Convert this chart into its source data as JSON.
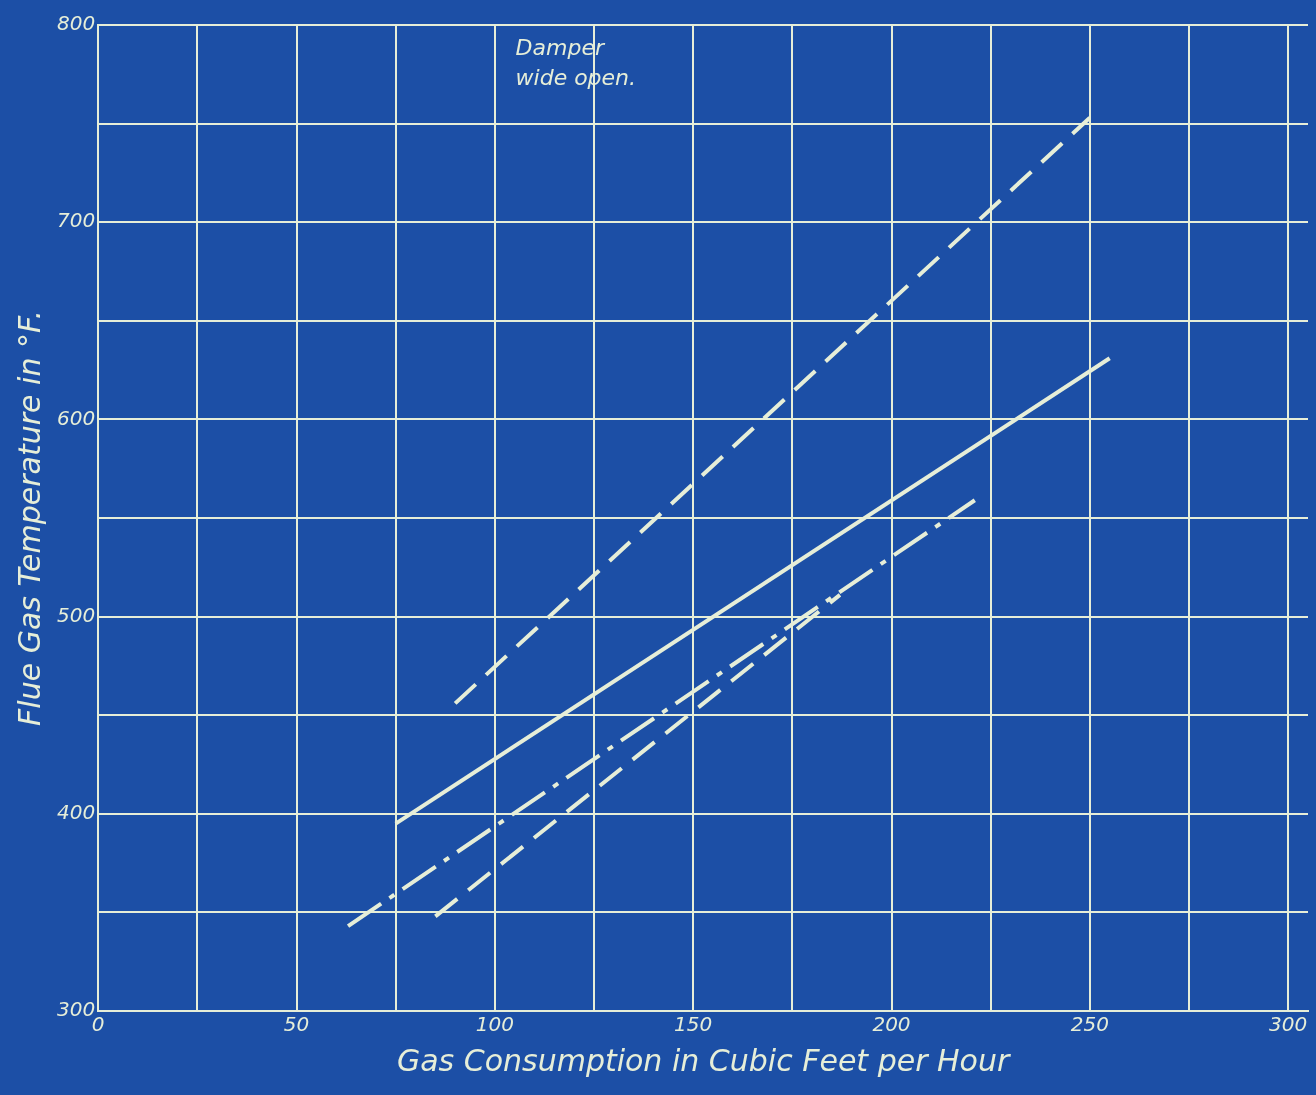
{
  "chart_data": {
    "type": "line",
    "xlabel": "Gas Consumption in Cubic Feet per Hour",
    "ylabel": "Flue Gas Temperature in °F.",
    "annotations": [
      "Damper\nwide open."
    ],
    "xlim": [
      0,
      305
    ],
    "ylim": [
      300,
      800
    ],
    "xticks": [
      0,
      {
        "value": 25,
        "label": null
      },
      50,
      {
        "value": 75,
        "label": null
      },
      100,
      {
        "value": 125,
        "label": null
      },
      150,
      {
        "value": 175,
        "label": null
      },
      200,
      {
        "value": 225,
        "label": null
      },
      250,
      {
        "value": 275,
        "label": null
      },
      300
    ],
    "yticks": [
      300,
      {
        "value": 350,
        "label": null
      },
      400,
      {
        "value": 450,
        "label": null
      },
      500,
      {
        "value": 550,
        "label": null
      },
      600,
      {
        "value": 650,
        "label": null
      },
      700,
      {
        "value": 750,
        "label": null
      },
      800
    ],
    "grid": true,
    "marker": "none",
    "series": [
      {
        "color": "#e6eed8",
        "line_style": "dashed",
        "x": [
          90,
          250
        ],
        "values": [
          456,
          753
        ]
      },
      {
        "color": "#e6eed8",
        "line_style": "solid",
        "x": [
          75,
          255
        ],
        "values": [
          395,
          631
        ]
      },
      {
        "color": "#e6eed8",
        "line_style": "dashdot",
        "x": [
          63,
          221
        ],
        "values": [
          343,
          559
        ]
      },
      {
        "color": "#e6eed8",
        "line_style": "dashed",
        "x": [
          85,
          187
        ],
        "values": [
          348,
          511
        ]
      }
    ]
  }
}
